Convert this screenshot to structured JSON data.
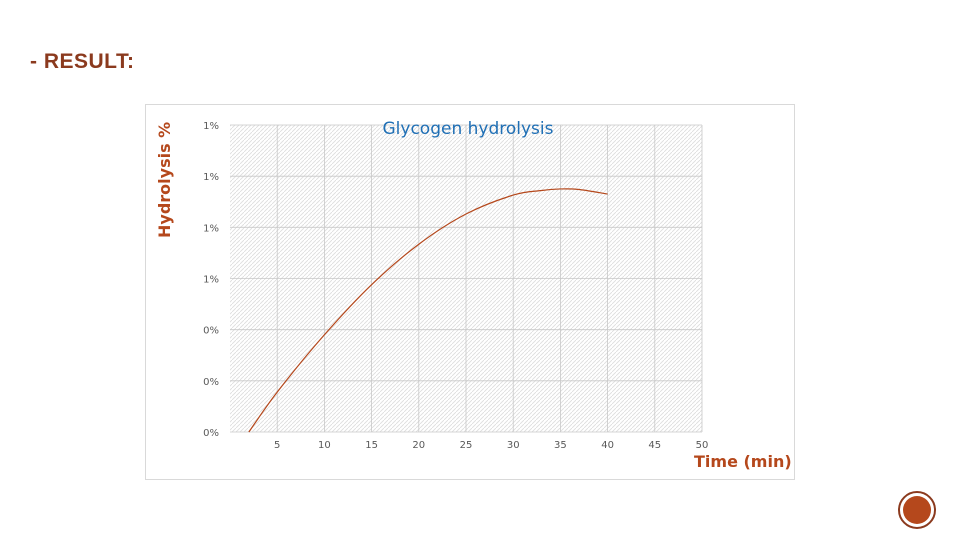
{
  "slide": {
    "heading": "- RESULT:"
  },
  "chart_data": {
    "type": "line",
    "title": "Glycogen hydrolysis",
    "xlabel": "Time (min)",
    "ylabel": "Hydrolysis %",
    "x_ticks": [
      "5",
      "10",
      "15",
      "20",
      "25",
      "30",
      "35",
      "40",
      "45",
      "50"
    ],
    "y_ticks": [
      "0%",
      "0%",
      "0%",
      "1%",
      "1%",
      "1%",
      "1%"
    ],
    "xlim": [
      0,
      50
    ],
    "ylim": [
      0,
      6
    ],
    "grid": true,
    "series": [
      {
        "color": "#b5481c",
        "x": [
          2,
          5,
          10,
          15,
          20,
          25,
          30,
          33,
          35,
          37,
          40
        ],
        "y": [
          0,
          0.78,
          1.9,
          2.88,
          3.67,
          4.26,
          4.63,
          4.72,
          4.75,
          4.74,
          4.65
        ]
      }
    ]
  },
  "colors": {
    "heading": "#8b3a1e",
    "accent": "#b5481c",
    "title": "#1f6fb5",
    "axis_text": "#595959"
  }
}
